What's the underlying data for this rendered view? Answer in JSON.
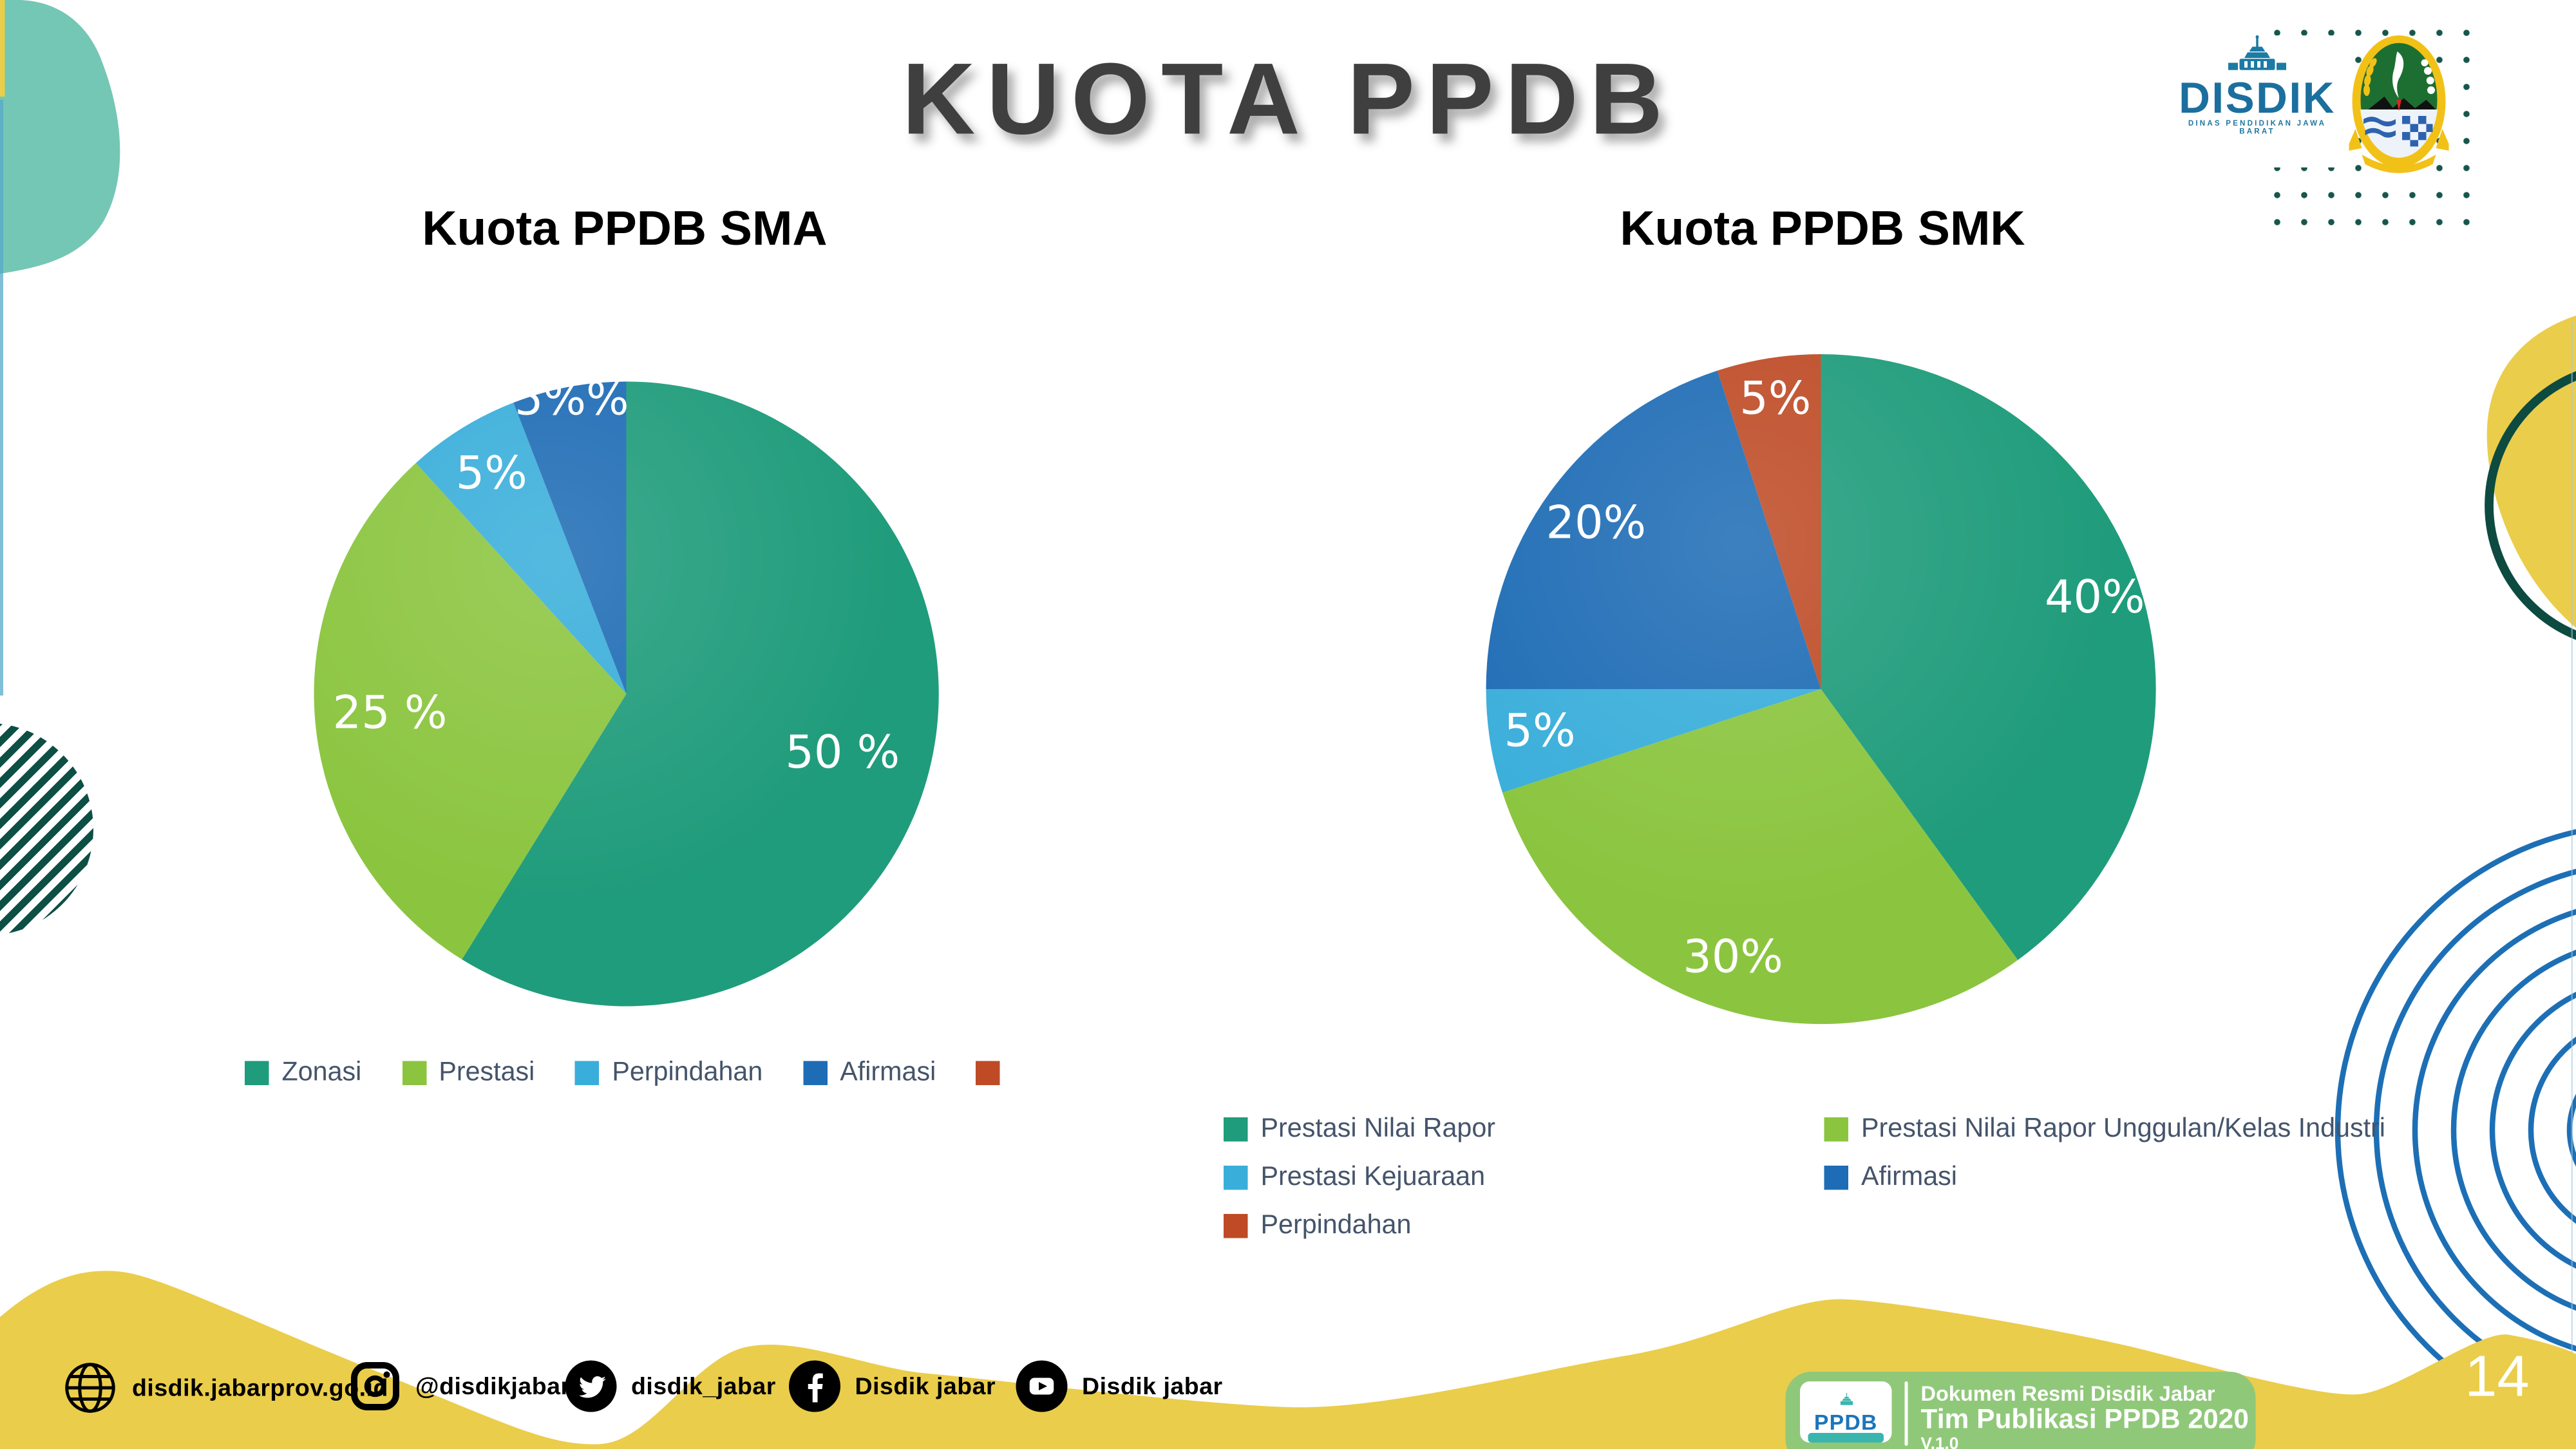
{
  "title": "KUOTA PPDB",
  "logos": {
    "disdik": {
      "name": "DISDIK",
      "subtitle": "DINAS PENDIDIKAN JAWA BARAT"
    },
    "jabar_emblem": "Lambang Jawa Barat"
  },
  "chart_data": [
    {
      "type": "pie",
      "title": "Kuota PPDB SMA",
      "categories": [
        "Zonasi",
        "Prestasi",
        "Perpindahan",
        "Afirmasi",
        ""
      ],
      "values": [
        50,
        25,
        5,
        5,
        0
      ],
      "display_labels": [
        "50 %",
        "25 %",
        "5%",
        "5%%",
        ""
      ],
      "colors": [
        "#1f9c7b",
        "#8bc53f",
        "#39aeda",
        "#1e6cb5",
        "#be4b26"
      ],
      "label_r": [
        0.72,
        0.76,
        0.82,
        0.95,
        0
      ],
      "start_angle": 0,
      "legend_position": "bottom-row",
      "legend": [
        {
          "label": "Zonasi",
          "color": "#1f9c7b"
        },
        {
          "label": "Prestasi",
          "color": "#8bc53f"
        },
        {
          "label": "Perpindahan",
          "color": "#39aeda"
        },
        {
          "label": "Afirmasi",
          "color": "#1e6cb5"
        },
        {
          "label": "",
          "color": "#be4b26"
        }
      ]
    },
    {
      "type": "pie",
      "title": "Kuota PPDB SMK",
      "categories": [
        "Prestasi Nilai Rapor",
        "Prestasi Nilai Rapor Unggulan/Kelas Industri",
        "Prestasi Kejuaraan",
        "Afirmasi",
        "Perpindahan"
      ],
      "values": [
        40,
        30,
        5,
        20,
        5
      ],
      "display_labels": [
        "40%",
        "30%",
        "5%",
        "20%",
        "5%"
      ],
      "colors": [
        "#1f9c7b",
        "#8bc53f",
        "#39aeda",
        "#1e6cb5",
        "#be4b26"
      ],
      "label_r": [
        0.86,
        0.85,
        0.85,
        0.83,
        0.87
      ],
      "start_angle": 0,
      "legend_position": "bottom-two-columns",
      "legend_columns": [
        [
          {
            "label": "Prestasi Nilai Rapor",
            "color": "#1f9c7b"
          },
          {
            "label": "Prestasi Kejuaraan",
            "color": "#39aeda"
          },
          {
            "label": "Perpindahan",
            "color": "#be4b26"
          }
        ],
        [
          {
            "label": "Prestasi Nilai Rapor Unggulan/Kelas Industri",
            "color": "#8bc53f"
          },
          {
            "label": "Afirmasi",
            "color": "#1e6cb5"
          }
        ]
      ]
    }
  ],
  "footer": {
    "socials": [
      {
        "icon": "globe-icon",
        "label": "disdik.jabarprov.go.id"
      },
      {
        "icon": "instagram-icon",
        "label": "@disdikjabar"
      },
      {
        "icon": "twitter-icon",
        "label": "disdik_jabar"
      },
      {
        "icon": "facebook-icon",
        "label": "Disdik jabar"
      },
      {
        "icon": "youtube-icon",
        "label": "Disdik jabar"
      }
    ],
    "badge": {
      "logo_text": "PPDB",
      "line1": "Dokumen Resmi Disdik Jabar",
      "line2": "Tim Publikasi PPDB 2020",
      "line3": "V.1.0"
    },
    "page_number": "14"
  },
  "colors": {
    "accent_yellow": "#eacd4b",
    "mint_blob": "#74c7b4",
    "stripe_teal": "#0d4f45",
    "ring_blue": "#1d6fb5",
    "ring_teal": "#0d4a40",
    "dot_teal": "#16564c",
    "title_gray": "#3f3f3f",
    "legend_text": "#44546a",
    "badge_green": "#90c87a"
  }
}
